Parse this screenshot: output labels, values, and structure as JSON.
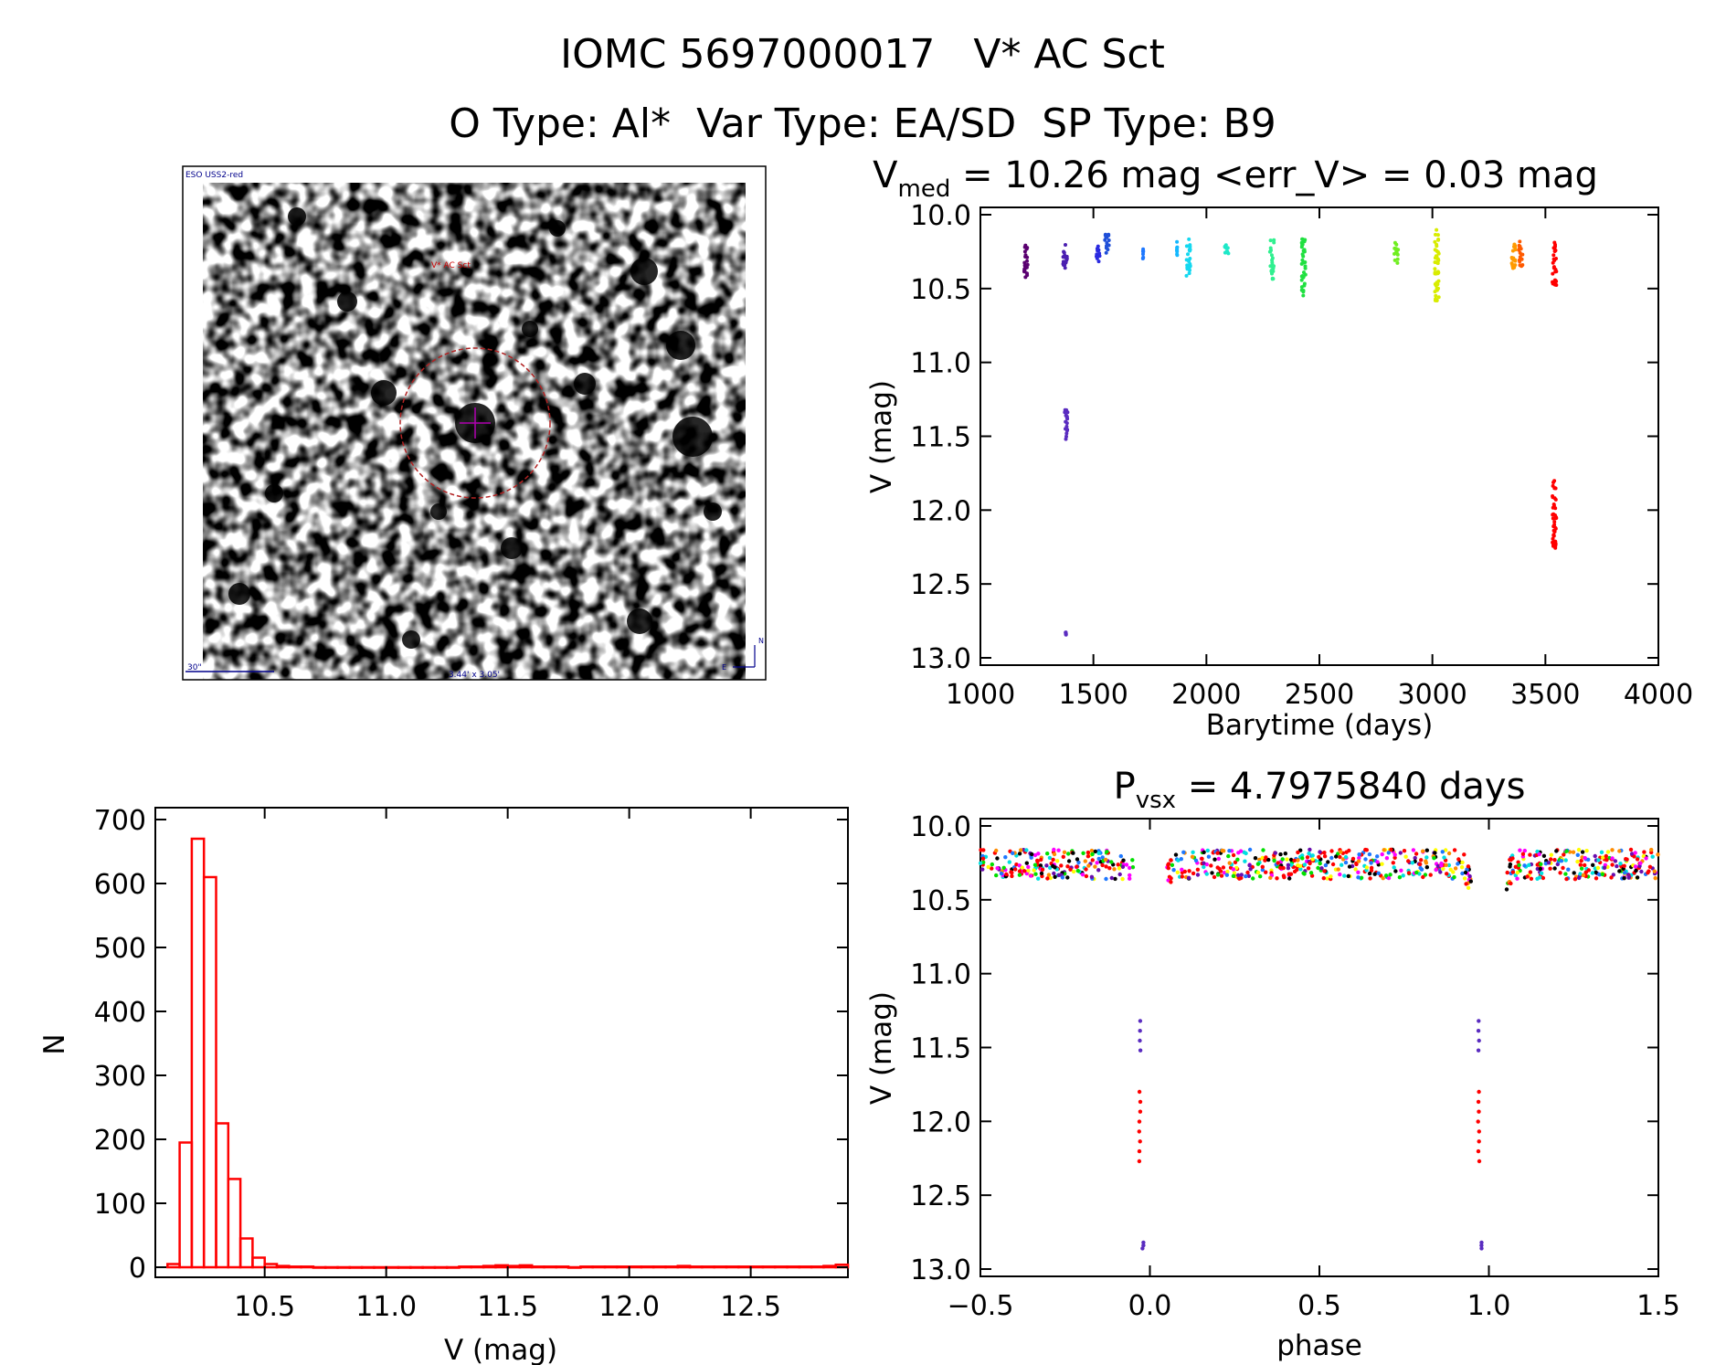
{
  "figure": {
    "title_line1": "IOMC 5697000017   V* AC Sct",
    "title_line2": "O Type: Al*  Var Type: EA/SD  SP Type: B9"
  },
  "finder": {
    "survey_label": "ESO USS2-red",
    "target_label": "V* AC Sct",
    "scale_label": "30\"",
    "fov_label": "3.44' x 3.05'",
    "north_label": "N",
    "east_label": "E"
  },
  "colors": {
    "hist": "#ff0000",
    "axis": "#000000",
    "circle": "#b22222"
  },
  "chart_data": [
    {
      "id": "lightcurve",
      "type": "scatter",
      "title_prefix": "V",
      "title_sub": "med",
      "title_rest": " = 10.26 mag <err_V> = 0.03 mag",
      "xlabel": "Barytime (days)",
      "ylabel": "V (mag)",
      "xlim": [
        1000,
        4000
      ],
      "ylim": [
        13.0,
        10.0
      ],
      "y_inverted": true,
      "xticks": [
        1000,
        1500,
        2000,
        2500,
        3000,
        3500,
        4000
      ],
      "yticks": [
        10.0,
        10.5,
        11.0,
        11.5,
        12.0,
        12.5,
        13.0
      ],
      "clusters": [
        {
          "x": 1200,
          "ymin": 10.18,
          "ymax": 10.43,
          "color": "#5a0070"
        },
        {
          "x": 1375,
          "ymin": 10.2,
          "ymax": 10.4,
          "color": "#4a1fb0"
        },
        {
          "x": 1378,
          "ymin": 11.32,
          "ymax": 11.52,
          "color": "#5a2cc0"
        },
        {
          "x": 1378,
          "ymin": 12.82,
          "ymax": 12.85,
          "color": "#5a2cc0"
        },
        {
          "x": 1520,
          "ymin": 10.2,
          "ymax": 10.32,
          "color": "#2a2ae0"
        },
        {
          "x": 1560,
          "ymin": 10.12,
          "ymax": 10.27,
          "color": "#1f4fd8"
        },
        {
          "x": 1720,
          "ymin": 10.22,
          "ymax": 10.32,
          "color": "#1e78ff"
        },
        {
          "x": 1870,
          "ymin": 10.18,
          "ymax": 10.28,
          "color": "#14b8ff"
        },
        {
          "x": 1920,
          "ymin": 10.16,
          "ymax": 10.42,
          "color": "#14d8f0"
        },
        {
          "x": 2090,
          "ymin": 10.2,
          "ymax": 10.3,
          "color": "#1ee8c8"
        },
        {
          "x": 2290,
          "ymin": 10.16,
          "ymax": 10.44,
          "color": "#30f090"
        },
        {
          "x": 2430,
          "ymin": 10.16,
          "ymax": 10.55,
          "color": "#20e040"
        },
        {
          "x": 2840,
          "ymin": 10.18,
          "ymax": 10.34,
          "color": "#70ee20"
        },
        {
          "x": 3020,
          "ymin": 10.1,
          "ymax": 10.6,
          "color": "#d8ec00"
        },
        {
          "x": 3360,
          "ymin": 10.18,
          "ymax": 10.38,
          "color": "#ff9a00"
        },
        {
          "x": 3390,
          "ymin": 10.18,
          "ymax": 10.36,
          "color": "#ff5a00"
        },
        {
          "x": 3540,
          "ymin": 10.16,
          "ymax": 10.48,
          "color": "#ff0000"
        },
        {
          "x": 3540,
          "ymin": 11.8,
          "ymax": 12.27,
          "color": "#ff0000"
        }
      ]
    },
    {
      "id": "histogram",
      "type": "bar",
      "xlabel": "V (mag)",
      "ylabel": "N",
      "xlim": [
        10.05,
        12.9
      ],
      "ylim": [
        0,
        700
      ],
      "xticks": [
        10.5,
        11.0,
        11.5,
        12.0,
        12.5
      ],
      "yticks": [
        0,
        100,
        200,
        300,
        400,
        500,
        600,
        700
      ],
      "bin_width": 0.05,
      "bin_start": 10.1,
      "counts": [
        5,
        195,
        670,
        610,
        225,
        138,
        45,
        15,
        5,
        2,
        1,
        1,
        0,
        0,
        0,
        0,
        0,
        0,
        0,
        0,
        0,
        0,
        0,
        0,
        1,
        1,
        2,
        3,
        2,
        3,
        1,
        1,
        1,
        0,
        1,
        1,
        1,
        1,
        1,
        1,
        1,
        1,
        2,
        1,
        1,
        1,
        1,
        1,
        1,
        1,
        1,
        1,
        1,
        1,
        2,
        4
      ]
    },
    {
      "id": "phased",
      "type": "scatter",
      "title_prefix": "P",
      "title_sub": "vsx",
      "title_rest": " = 4.7975840 days",
      "xlabel": "phase",
      "ylabel": "V (mag)",
      "period_days": 4.797584,
      "xlim": [
        -0.5,
        1.5
      ],
      "ylim": [
        13.0,
        10.0
      ],
      "y_inverted": true,
      "xticks": [
        -0.5,
        0.0,
        0.5,
        1.0,
        1.5
      ],
      "xtick_labels": [
        "−0.5",
        "0.0",
        "0.5",
        "1.0",
        "1.5"
      ],
      "yticks": [
        10.0,
        10.5,
        11.0,
        11.5,
        12.0,
        12.5,
        13.0
      ],
      "baseline_mag": 10.26,
      "primary_eclipse": [
        {
          "phase": -0.03,
          "ymin": 11.32,
          "ymax": 11.52,
          "color": "#5a2cc0"
        },
        {
          "phase": -0.03,
          "ymin": 11.8,
          "ymax": 12.27,
          "color": "#ff0000"
        },
        {
          "phase": -0.02,
          "ymin": 12.82,
          "ymax": 12.86,
          "color": "#5a2cc0"
        },
        {
          "phase": 0.97,
          "ymin": 11.32,
          "ymax": 11.52,
          "color": "#5a2cc0"
        },
        {
          "phase": 0.97,
          "ymin": 11.8,
          "ymax": 12.27,
          "color": "#ff0000"
        },
        {
          "phase": 0.98,
          "ymin": 12.82,
          "ymax": 12.86,
          "color": "#5a2cc0"
        }
      ]
    }
  ]
}
